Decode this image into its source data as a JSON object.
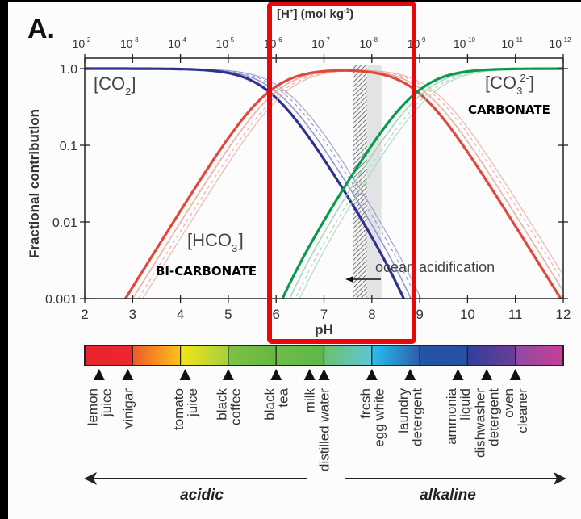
{
  "panel_label": "A.",
  "chart_data": {
    "type": "line",
    "title": "",
    "xlabel": "pH",
    "ylabel": "Fractional contribution",
    "top_axis_label": "[H+] (mol kg-1)",
    "xlim": [
      2,
      12
    ],
    "ylim": [
      0.001,
      1.0
    ],
    "yscale": "log",
    "x_ticks": [
      2,
      3,
      4,
      5,
      6,
      7,
      8,
      9,
      10,
      11,
      12
    ],
    "y_ticks": [
      {
        "value": 1.0,
        "label": "1.0"
      },
      {
        "value": 0.1,
        "label": "0.1"
      },
      {
        "value": 0.01,
        "label": "0.01"
      },
      {
        "value": 0.001,
        "label": "0.001"
      }
    ],
    "top_ticks": [
      {
        "pH": 2,
        "base": "10",
        "exp": "-2"
      },
      {
        "pH": 3,
        "base": "10",
        "exp": "-3"
      },
      {
        "pH": 4,
        "base": "10",
        "exp": "-4"
      },
      {
        "pH": 5,
        "base": "10",
        "exp": "-5"
      },
      {
        "pH": 6,
        "base": "10",
        "exp": "-6"
      },
      {
        "pH": 7,
        "base": "10",
        "exp": "-7"
      },
      {
        "pH": 8,
        "base": "10",
        "exp": "-8"
      },
      {
        "pH": 9,
        "base": "10",
        "exp": "-9"
      },
      {
        "pH": 10,
        "base": "10",
        "exp": "-10"
      },
      {
        "pH": 11,
        "base": "10",
        "exp": "-11"
      },
      {
        "pH": 12,
        "base": "10",
        "exp": "-12"
      }
    ],
    "pK1": 5.85,
    "pK2": 8.95,
    "pK_shift_faint": 0.15,
    "series": [
      {
        "name": "CO2",
        "label_main": "[CO",
        "label_sub": "2",
        "label_sup": "",
        "label_close": "]",
        "color": "#2e3192",
        "faint_color": "#8b8dc8",
        "common_name": ""
      },
      {
        "name": "HCO3-",
        "label_main": "[HCO",
        "label_sub": "3",
        "label_sup": "-",
        "label_close": "]",
        "color": "#e0483a",
        "faint_color": "#e9a79d",
        "common_name": "BI-CARBONATE"
      },
      {
        "name": "CO3 2-",
        "label_main": "[CO",
        "label_sub": "3",
        "label_sup": "2-",
        "label_close": "]",
        "color": "#0a9a4e",
        "faint_color": "#9fd3b6",
        "common_name": "CARBONATE"
      }
    ],
    "shaded_regions": [
      {
        "name": "preindustrial-to-future-range",
        "from_pH": 7.6,
        "to_pH": 7.9,
        "style": "hatched"
      },
      {
        "name": "present-day-range",
        "from_pH": 7.9,
        "to_pH": 8.2,
        "style": "grey"
      }
    ],
    "annotations": [
      {
        "text": "ocean acidification",
        "arrow": "left",
        "pH": 8.0
      }
    ],
    "highlight_box": {
      "from_pH": 5.85,
      "to_pH": 8.95,
      "color": "#e8070a"
    }
  },
  "ph_scale": {
    "segments": [
      {
        "from": "#e8242c",
        "to": "#ee2630"
      },
      {
        "from": "#ef5a2a",
        "to": "#fcc316"
      },
      {
        "from": "#f2e516",
        "to": "#a7cf3d"
      },
      {
        "from": "#7cc244",
        "to": "#64b744"
      },
      {
        "from": "#6dbd45",
        "to": "#5eb74a"
      },
      {
        "from": "#6cc070",
        "to": "#5ec6d6"
      },
      {
        "from": "#27c0ef",
        "to": "#2d5eab"
      },
      {
        "from": "#2654a4",
        "to": "#2652a3"
      },
      {
        "from": "#2f3f9a",
        "to": "#6b3e98"
      },
      {
        "from": "#8c4b9f",
        "to": "#cb3e98"
      }
    ],
    "markers": [
      {
        "pH": 2.3,
        "lines": [
          "lemon",
          "juice"
        ]
      },
      {
        "pH": 2.9,
        "lines": [
          "vinigar"
        ]
      },
      {
        "pH": 4.1,
        "lines": [
          "tomato",
          "juice"
        ]
      },
      {
        "pH": 5.0,
        "lines": [
          "black",
          "coffee"
        ]
      },
      {
        "pH": 6.0,
        "lines": [
          "black",
          "tea"
        ]
      },
      {
        "pH": 6.7,
        "lines": [
          "milk"
        ]
      },
      {
        "pH": 7.0,
        "lines": [
          "distilled water"
        ]
      },
      {
        "pH": 8.0,
        "lines": [
          "fresh",
          "egg white"
        ]
      },
      {
        "pH": 8.8,
        "lines": [
          "laundry",
          "detergent"
        ]
      },
      {
        "pH": 9.8,
        "lines": [
          "ammonia",
          "liquid"
        ]
      },
      {
        "pH": 10.4,
        "lines": [
          "dishwasher",
          "detergent"
        ]
      },
      {
        "pH": 11.0,
        "lines": [
          "oven",
          "cleaner"
        ]
      }
    ],
    "acidic_label": "acidic",
    "alkaline_label": "alkaline"
  }
}
